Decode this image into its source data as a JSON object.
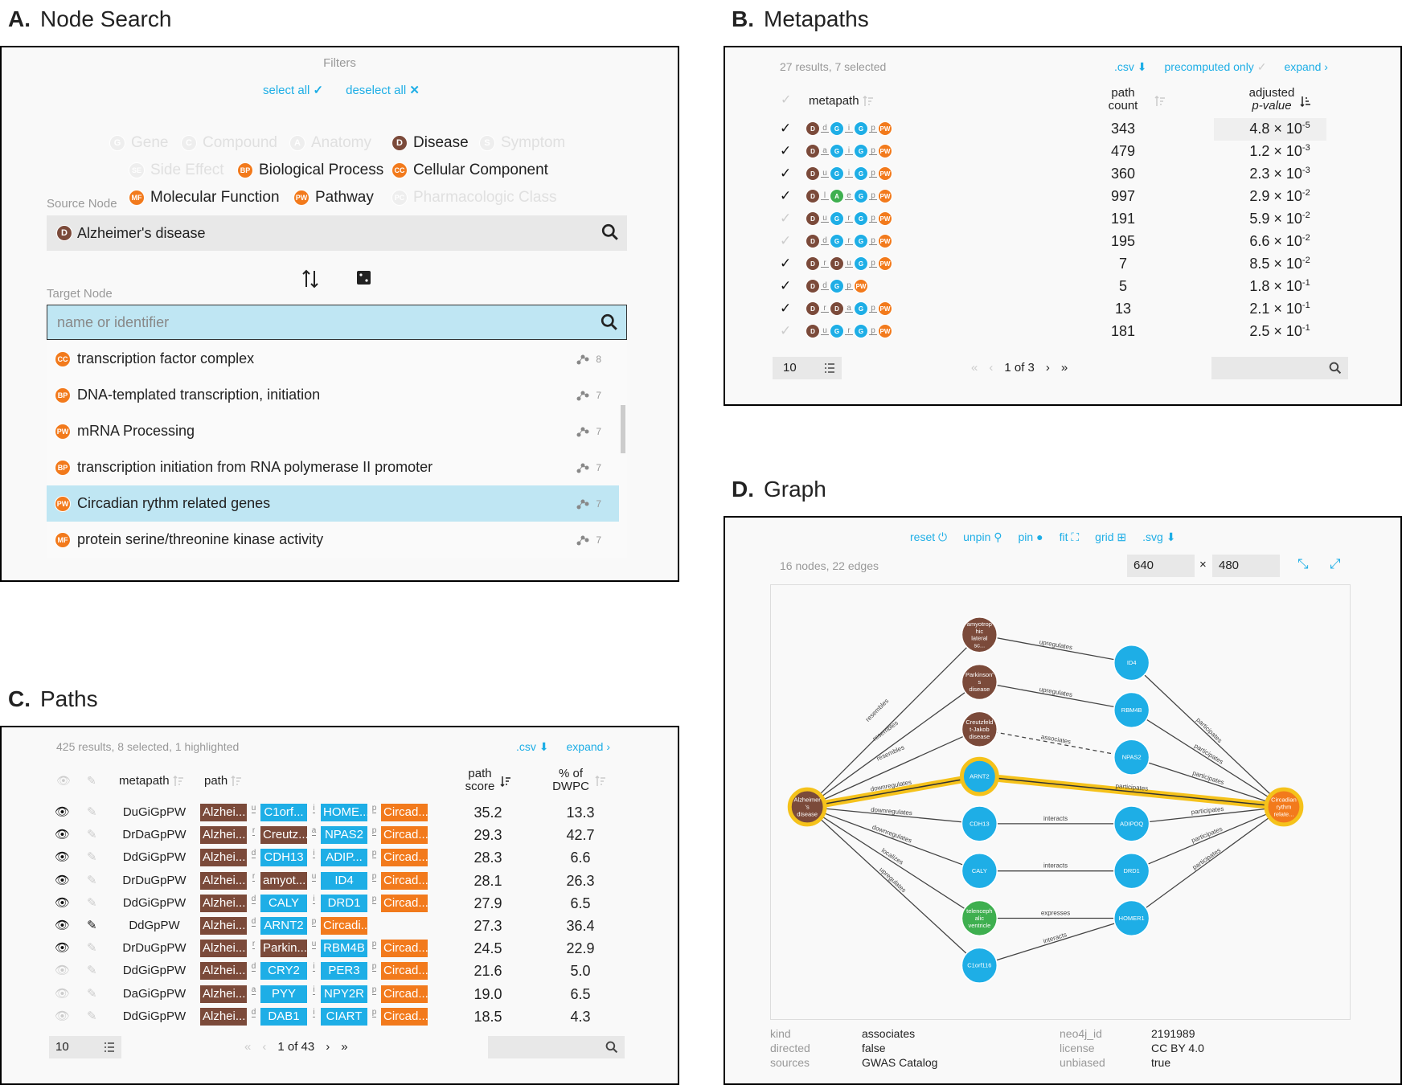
{
  "panelA": {
    "letter": "A.",
    "title": "Node Search",
    "filters_label": "Filters",
    "select_all": "select all",
    "deselect_all": "deselect all",
    "filters": [
      {
        "abbr": "G",
        "label": "Gene",
        "on": false
      },
      {
        "abbr": "C",
        "label": "Compound",
        "on": false
      },
      {
        "abbr": "A",
        "label": "Anatomy",
        "on": false
      },
      {
        "abbr": "D",
        "label": "Disease",
        "on": true
      },
      {
        "abbr": "S",
        "label": "Symptom",
        "on": false
      },
      {
        "abbr": "SE",
        "label": "Side Effect",
        "on": false
      },
      {
        "abbr": "BP",
        "label": "Biological Process",
        "on": true
      },
      {
        "abbr": "CC",
        "label": "Cellular Component",
        "on": true
      },
      {
        "abbr": "MF",
        "label": "Molecular Function",
        "on": true
      },
      {
        "abbr": "PW",
        "label": "Pathway",
        "on": true
      },
      {
        "abbr": "PC",
        "label": "Pharmacologic Class",
        "on": false
      }
    ],
    "source_label": "Source Node",
    "source_value": "Alzheimer's disease",
    "source_abbr": "D",
    "target_label": "Target Node",
    "target_placeholder": "name or identifier",
    "results": [
      {
        "abbr": "CC",
        "label": "transcription factor complex",
        "count": "8"
      },
      {
        "abbr": "BP",
        "label": "DNA-templated transcription, initiation",
        "count": "7"
      },
      {
        "abbr": "PW",
        "label": "mRNA Processing",
        "count": "7"
      },
      {
        "abbr": "BP",
        "label": "transcription initiation from RNA polymerase II promoter",
        "count": "7"
      },
      {
        "abbr": "PW",
        "label": "Circadian rythm related genes",
        "count": "7"
      },
      {
        "abbr": "MF",
        "label": "protein serine/threonine kinase activity",
        "count": "7"
      }
    ]
  },
  "panelB": {
    "letter": "B.",
    "title": "Metapaths",
    "summary": "27 results, 7 selected",
    "csv": ".csv",
    "precomputed": "precomputed only",
    "expand": "expand",
    "col_metapath": "metapath",
    "col_count1": "path",
    "col_count2": "count",
    "col_p1": "adjusted",
    "col_p2": "p-value",
    "rows": [
      {
        "checked": true,
        "nodes": [
          "D",
          "G",
          "G",
          "PW"
        ],
        "edges": [
          "d",
          "i",
          "p"
        ],
        "count": "343",
        "mant": "4.8",
        "exp": "-5"
      },
      {
        "checked": true,
        "nodes": [
          "D",
          "G",
          "G",
          "PW"
        ],
        "edges": [
          "a",
          "i",
          "p"
        ],
        "count": "479",
        "mant": "1.2",
        "exp": "-3"
      },
      {
        "checked": true,
        "nodes": [
          "D",
          "G",
          "G",
          "PW"
        ],
        "edges": [
          "u",
          "i",
          "p"
        ],
        "count": "360",
        "mant": "2.3",
        "exp": "-3"
      },
      {
        "checked": true,
        "nodes": [
          "D",
          "A",
          "G",
          "PW"
        ],
        "edges": [
          "l",
          "e",
          "p"
        ],
        "count": "997",
        "mant": "2.9",
        "exp": "-2"
      },
      {
        "checked": false,
        "nodes": [
          "D",
          "G",
          "G",
          "PW"
        ],
        "edges": [
          "u",
          "r",
          "p"
        ],
        "count": "191",
        "mant": "5.9",
        "exp": "-2"
      },
      {
        "checked": false,
        "nodes": [
          "D",
          "G",
          "G",
          "PW"
        ],
        "edges": [
          "d",
          "r",
          "p"
        ],
        "count": "195",
        "mant": "6.6",
        "exp": "-2"
      },
      {
        "checked": true,
        "nodes": [
          "D",
          "D",
          "G",
          "PW"
        ],
        "edges": [
          "r",
          "u",
          "p"
        ],
        "count": "7",
        "mant": "8.5",
        "exp": "-2"
      },
      {
        "checked": true,
        "nodes": [
          "D",
          "G",
          "PW"
        ],
        "edges": [
          "d",
          "p"
        ],
        "count": "5",
        "mant": "1.8",
        "exp": "-1"
      },
      {
        "checked": true,
        "nodes": [
          "D",
          "D",
          "G",
          "PW"
        ],
        "edges": [
          "r",
          "a",
          "p"
        ],
        "count": "13",
        "mant": "2.1",
        "exp": "-1"
      },
      {
        "checked": false,
        "nodes": [
          "D",
          "G",
          "G",
          "PW"
        ],
        "edges": [
          "u",
          "r",
          "p"
        ],
        "count": "181",
        "mant": "2.5",
        "exp": "-1"
      }
    ],
    "page_size": "10",
    "page_info": "1 of 3",
    "times": "× 10"
  },
  "panelC": {
    "letter": "C.",
    "title": "Paths",
    "summary": "425 results, 8 selected, 1 highlighted",
    "csv": ".csv",
    "expand": "expand",
    "col_metapath": "metapath",
    "col_path": "path",
    "col_score1": "path",
    "col_score2": "score",
    "col_dwpc1": "% of",
    "col_dwpc2": "DWPC",
    "rows": [
      {
        "vis": true,
        "pin": false,
        "mp": "DuGiGpPW",
        "b": [
          [
            "D",
            "Alzhei..."
          ],
          [
            "G",
            "C1orf..."
          ],
          [
            "G",
            "HOME..."
          ],
          [
            "PW",
            "Circad..."
          ]
        ],
        "e": [
          "u",
          "i",
          "p"
        ],
        "score": "35.2",
        "dwpc": "13.3"
      },
      {
        "vis": true,
        "pin": false,
        "mp": "DrDaGpPW",
        "b": [
          [
            "D",
            "Alzhei..."
          ],
          [
            "D",
            "Creutz..."
          ],
          [
            "G",
            "NPAS2"
          ],
          [
            "PW",
            "Circad..."
          ]
        ],
        "e": [
          "r",
          "a",
          "p"
        ],
        "score": "29.3",
        "dwpc": "42.7"
      },
      {
        "vis": true,
        "pin": false,
        "mp": "DdGiGpPW",
        "b": [
          [
            "D",
            "Alzhei..."
          ],
          [
            "G",
            "CDH13"
          ],
          [
            "G",
            "ADIP..."
          ],
          [
            "PW",
            "Circad..."
          ]
        ],
        "e": [
          "d",
          "i",
          "p"
        ],
        "score": "28.3",
        "dwpc": "6.6"
      },
      {
        "vis": true,
        "pin": false,
        "mp": "DrDuGpPW",
        "b": [
          [
            "D",
            "Alzhei..."
          ],
          [
            "D",
            "amyot..."
          ],
          [
            "G",
            "ID4"
          ],
          [
            "PW",
            "Circad..."
          ]
        ],
        "e": [
          "r",
          "u",
          "p"
        ],
        "score": "28.1",
        "dwpc": "26.3"
      },
      {
        "vis": true,
        "pin": false,
        "mp": "DdGiGpPW",
        "b": [
          [
            "D",
            "Alzhei..."
          ],
          [
            "G",
            "CALY"
          ],
          [
            "G",
            "DRD1"
          ],
          [
            "PW",
            "Circad..."
          ]
        ],
        "e": [
          "d",
          "i",
          "p"
        ],
        "score": "27.9",
        "dwpc": "6.5"
      },
      {
        "vis": true,
        "pin": true,
        "mp": "DdGpPW",
        "b": [
          [
            "D",
            "Alzhei..."
          ],
          [
            "G",
            "ARNT2"
          ],
          [
            "PW",
            "Circadi..."
          ]
        ],
        "e": [
          "d",
          "p"
        ],
        "score": "27.3",
        "dwpc": "36.4"
      },
      {
        "vis": true,
        "pin": false,
        "mp": "DrDuGpPW",
        "b": [
          [
            "D",
            "Alzhei..."
          ],
          [
            "D",
            "Parkin..."
          ],
          [
            "G",
            "RBM4B"
          ],
          [
            "PW",
            "Circad..."
          ]
        ],
        "e": [
          "r",
          "u",
          "p"
        ],
        "score": "24.5",
        "dwpc": "22.9"
      },
      {
        "vis": false,
        "pin": false,
        "mp": "DdGiGpPW",
        "b": [
          [
            "D",
            "Alzhei..."
          ],
          [
            "G",
            "CRY2"
          ],
          [
            "G",
            "PER3"
          ],
          [
            "PW",
            "Circad..."
          ]
        ],
        "e": [
          "d",
          "i",
          "p"
        ],
        "score": "21.6",
        "dwpc": "5.0"
      },
      {
        "vis": false,
        "pin": false,
        "mp": "DaGiGpPW",
        "b": [
          [
            "D",
            "Alzhei..."
          ],
          [
            "G",
            "PYY"
          ],
          [
            "G",
            "NPY2R"
          ],
          [
            "PW",
            "Circad..."
          ]
        ],
        "e": [
          "a",
          "i",
          "p"
        ],
        "score": "19.0",
        "dwpc": "6.5"
      },
      {
        "vis": false,
        "pin": false,
        "mp": "DdGiGpPW",
        "b": [
          [
            "D",
            "Alzhei..."
          ],
          [
            "G",
            "DAB1"
          ],
          [
            "G",
            "CIART"
          ],
          [
            "PW",
            "Circad..."
          ]
        ],
        "e": [
          "d",
          "i",
          "p"
        ],
        "score": "18.5",
        "dwpc": "4.3"
      }
    ],
    "page_size": "10",
    "page_info": "1 of 43"
  },
  "panelD": {
    "letter": "D.",
    "title": "Graph",
    "toolbar": {
      "reset": "reset",
      "unpin": "unpin",
      "pin": "pin",
      "fit": "fit",
      "grid": "grid",
      "svg": ".svg"
    },
    "summary": "16 nodes, 22 edges",
    "width": "640",
    "height": "480",
    "times": "×",
    "nodes": {
      "alz": "Alzheimer 's disease",
      "amy": "amyotrop hic lateral sc...",
      "park": "Parkinson' s disease",
      "cjd": "Creutzfeld t-Jakob disease",
      "arnt2": "ARNT2",
      "cdh13": "CDH13",
      "caly": "CALY",
      "tel": "telenceph alic ventricle",
      "c1orf": "C1orf116",
      "id4": "ID4",
      "rbm4b": "RBM4B",
      "npas2": "NPAS2",
      "adipoq": "ADIPOQ",
      "drd1": "DRD1",
      "homer1": "HOMER1",
      "circ": "Circadian rythm relate..."
    },
    "edges": {
      "resembles": "resembles",
      "downregulates": "downregulates",
      "localizes": "localizes",
      "upregulates": "upregulates",
      "associates": "associates",
      "participates": "participates",
      "interacts": "interacts",
      "expresses": "expresses"
    },
    "info": {
      "kind_k": "kind",
      "kind_v": "associates",
      "directed_k": "directed",
      "directed_v": "false",
      "sources_k": "sources",
      "sources_v": "GWAS Catalog",
      "neo_k": "neo4j_id",
      "neo_v": "2191989",
      "license_k": "license",
      "license_v": "CC BY 4.0",
      "unbiased_k": "unbiased",
      "unbiased_v": "true"
    }
  },
  "colors": {
    "disease": "#7b4a3a",
    "gene": "#1eaee6",
    "anatomy": "#3eaf4f",
    "pathway": "#f27a1c",
    "highlight": "#f5c21b",
    "link": "#1eaee6"
  }
}
